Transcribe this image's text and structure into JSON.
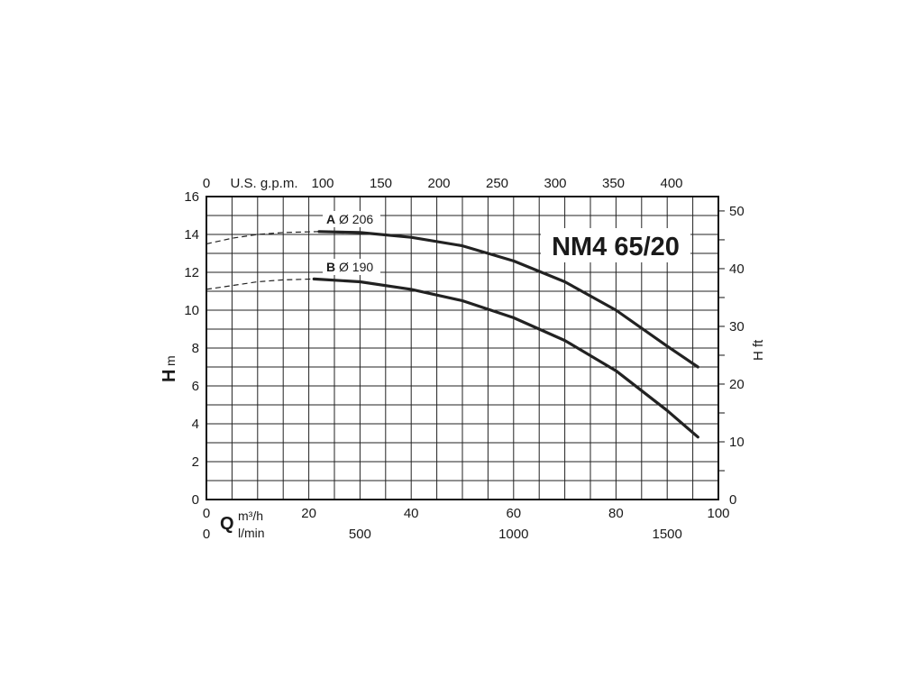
{
  "chart_data": {
    "type": "line",
    "title": "NM4 65/20",
    "x_axis_bottom_primary": {
      "symbol": "Q",
      "unit": "m³/h",
      "ticks": [
        "0",
        "20",
        "40",
        "60",
        "80",
        "100"
      ],
      "range": [
        0,
        100
      ]
    },
    "x_axis_bottom_secondary": {
      "unit": "l/min",
      "ticks": [
        "0",
        "500",
        "1000",
        "1500"
      ]
    },
    "x_axis_top": {
      "unit": "U.S. g.p.m.",
      "ticks": [
        "0",
        "100",
        "150",
        "200",
        "250",
        "300",
        "350",
        "400"
      ]
    },
    "y_axis_left": {
      "symbol": "H",
      "unit": "m",
      "ticks": [
        "0",
        "2",
        "4",
        "6",
        "8",
        "10",
        "12",
        "14",
        "16"
      ],
      "range": [
        0,
        16
      ]
    },
    "y_axis_right": {
      "label": "H ft",
      "ticks": [
        "0",
        "10",
        "20",
        "30",
        "40",
        "50"
      ]
    },
    "grid": true,
    "series": [
      {
        "name": "A",
        "label_letter": "A",
        "label_diameter": "Ø 206",
        "dashed": {
          "x": [
            0,
            5,
            10,
            15,
            22
          ],
          "y": [
            13.5,
            13.8,
            14.0,
            14.1,
            14.15
          ]
        },
        "solid": {
          "x": [
            22,
            30,
            40,
            50,
            60,
            70,
            80,
            90,
            96
          ],
          "y": [
            14.15,
            14.1,
            13.85,
            13.4,
            12.6,
            11.5,
            10.0,
            8.1,
            7.0
          ]
        }
      },
      {
        "name": "B",
        "label_letter": "B",
        "label_diameter": "Ø 190",
        "dashed": {
          "x": [
            0,
            5,
            10,
            15,
            21
          ],
          "y": [
            11.1,
            11.3,
            11.5,
            11.6,
            11.65
          ]
        },
        "solid": {
          "x": [
            21,
            30,
            40,
            50,
            60,
            70,
            80,
            90,
            96
          ],
          "y": [
            11.65,
            11.5,
            11.1,
            10.5,
            9.6,
            8.4,
            6.8,
            4.7,
            3.3
          ]
        }
      }
    ]
  }
}
